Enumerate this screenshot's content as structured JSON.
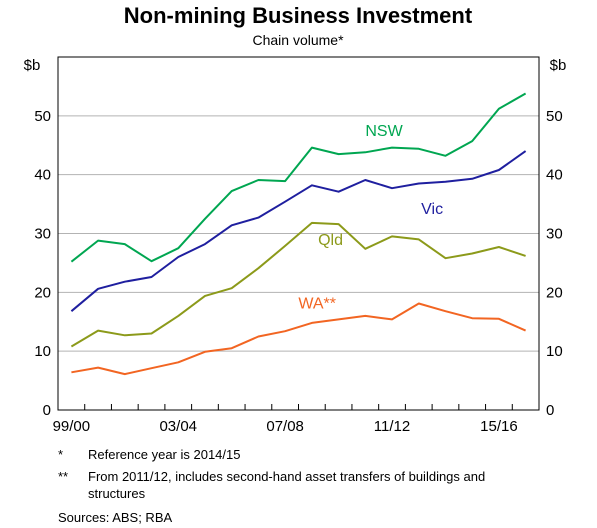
{
  "chart_data": {
    "type": "line",
    "title": "Non-mining Business Investment",
    "subtitle": "Chain volume*",
    "ylabel_left": "$b",
    "ylabel_right": "$b",
    "ylim": [
      0,
      60
    ],
    "yticks": [
      0,
      10,
      20,
      30,
      40,
      50
    ],
    "grid": "horizontal",
    "x": [
      "1999/00",
      "2000/01",
      "2001/02",
      "2002/03",
      "2003/04",
      "2004/05",
      "2005/06",
      "2006/07",
      "2007/08",
      "2008/09",
      "2009/10",
      "2010/11",
      "2011/12",
      "2012/13",
      "2013/14",
      "2014/15",
      "2015/16",
      "2016/17"
    ],
    "x_tick_labels": [
      "99/00",
      "03/04",
      "07/08",
      "11/12",
      "15/16"
    ],
    "series": [
      {
        "name": "NSW",
        "color": "#00a651",
        "values": [
          25.2,
          28.8,
          28.2,
          25.3,
          27.5,
          32.5,
          37.2,
          39.1,
          38.9,
          44.6,
          43.5,
          43.8,
          44.6,
          44.4,
          43.2,
          45.7,
          51.2,
          53.8
        ]
      },
      {
        "name": "Vic",
        "color": "#1f1f9f",
        "values": [
          16.8,
          20.6,
          21.8,
          22.6,
          26.0,
          28.2,
          31.4,
          32.7,
          35.4,
          38.2,
          37.1,
          39.1,
          37.7,
          38.5,
          38.8,
          39.3,
          40.8,
          44.0
        ]
      },
      {
        "name": "Qld",
        "color": "#8c9a1a",
        "values": [
          10.8,
          13.5,
          12.7,
          13.0,
          16.0,
          19.4,
          20.7,
          24.1,
          27.9,
          31.8,
          31.6,
          27.4,
          29.5,
          29.0,
          25.8,
          26.6,
          27.7,
          26.2
        ]
      },
      {
        "name": "WA**",
        "color": "#f26522",
        "values": [
          6.4,
          7.2,
          6.1,
          7.1,
          8.1,
          9.9,
          10.5,
          12.5,
          13.4,
          14.8,
          15.4,
          16.0,
          15.4,
          18.1,
          16.8,
          15.6,
          15.5,
          13.5
        ]
      }
    ],
    "notes": [
      {
        "mark": "*",
        "text": "Reference year is 2014/15"
      },
      {
        "mark": "**",
        "text": "From 2011/12, includes second-hand asset transfers of buildings and structures"
      }
    ],
    "sources": "Sources:   ABS; RBA"
  }
}
